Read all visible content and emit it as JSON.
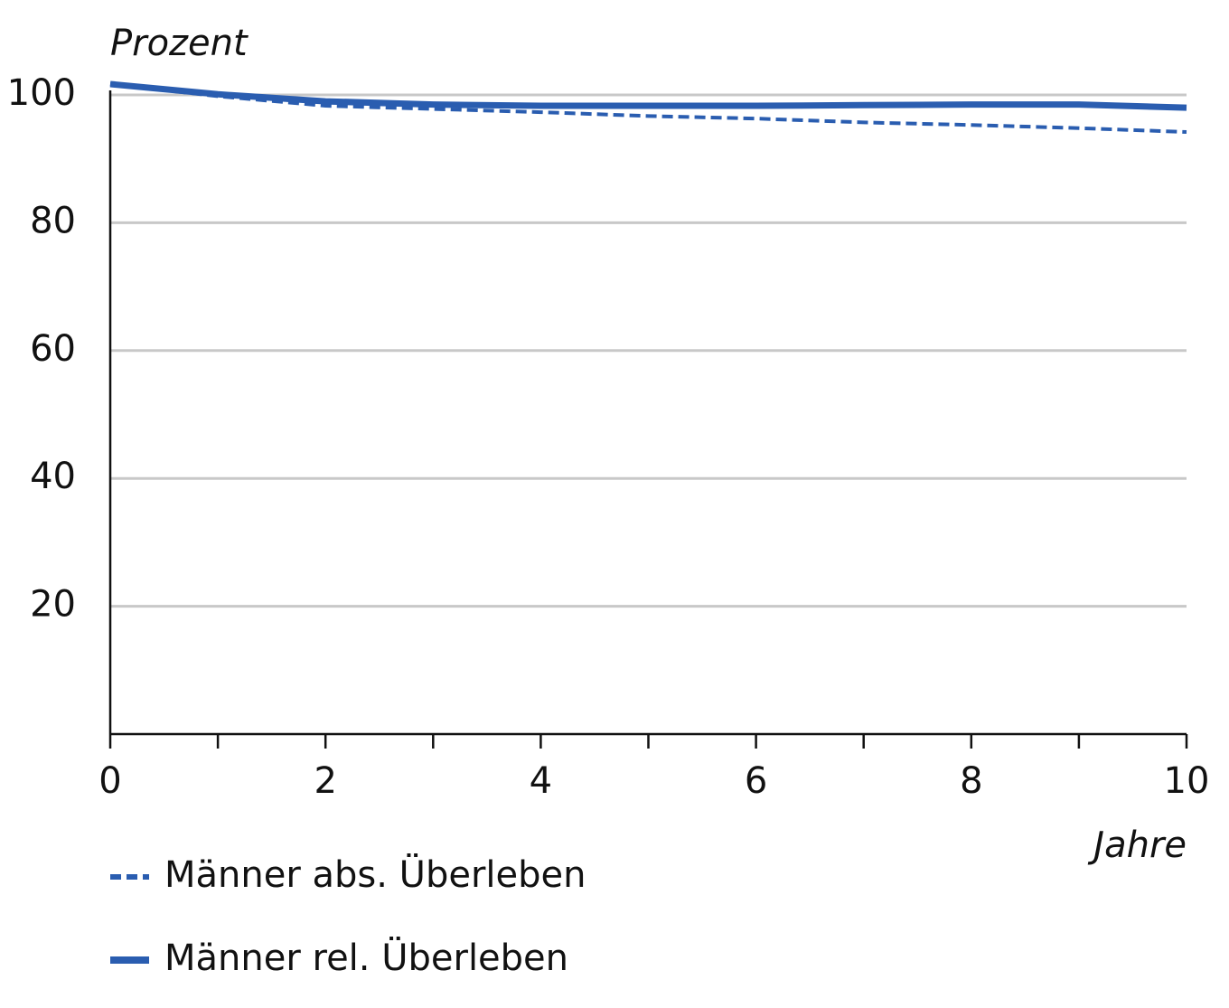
{
  "chart_data": {
    "type": "line",
    "y_label": "Prozent",
    "x_label": "Jahre",
    "x": [
      0,
      1,
      2,
      3,
      4,
      5,
      6,
      7,
      8,
      9,
      10
    ],
    "series": [
      {
        "name": "Männer abs. Überleben",
        "color": "#2a5db0",
        "dash": true,
        "values": [
          101.7,
          99.8,
          98.3,
          97.8,
          97.3,
          96.7,
          96.3,
          95.7,
          95.3,
          94.8,
          94.2
        ]
      },
      {
        "name": "Männer rel. Überleben",
        "color": "#2a5db0",
        "dash": false,
        "values": [
          101.7,
          100.1,
          99.0,
          98.5,
          98.3,
          98.3,
          98.3,
          98.4,
          98.5,
          98.5,
          98.0
        ]
      }
    ],
    "xlim": [
      0,
      10
    ],
    "xticks": [
      0,
      2,
      4,
      6,
      8,
      10
    ],
    "x_minor_ticks": [
      1,
      3,
      5,
      7,
      9
    ],
    "ylim": [
      0,
      102
    ],
    "yticks": [
      20,
      40,
      60,
      80,
      100
    ],
    "grid": true
  }
}
